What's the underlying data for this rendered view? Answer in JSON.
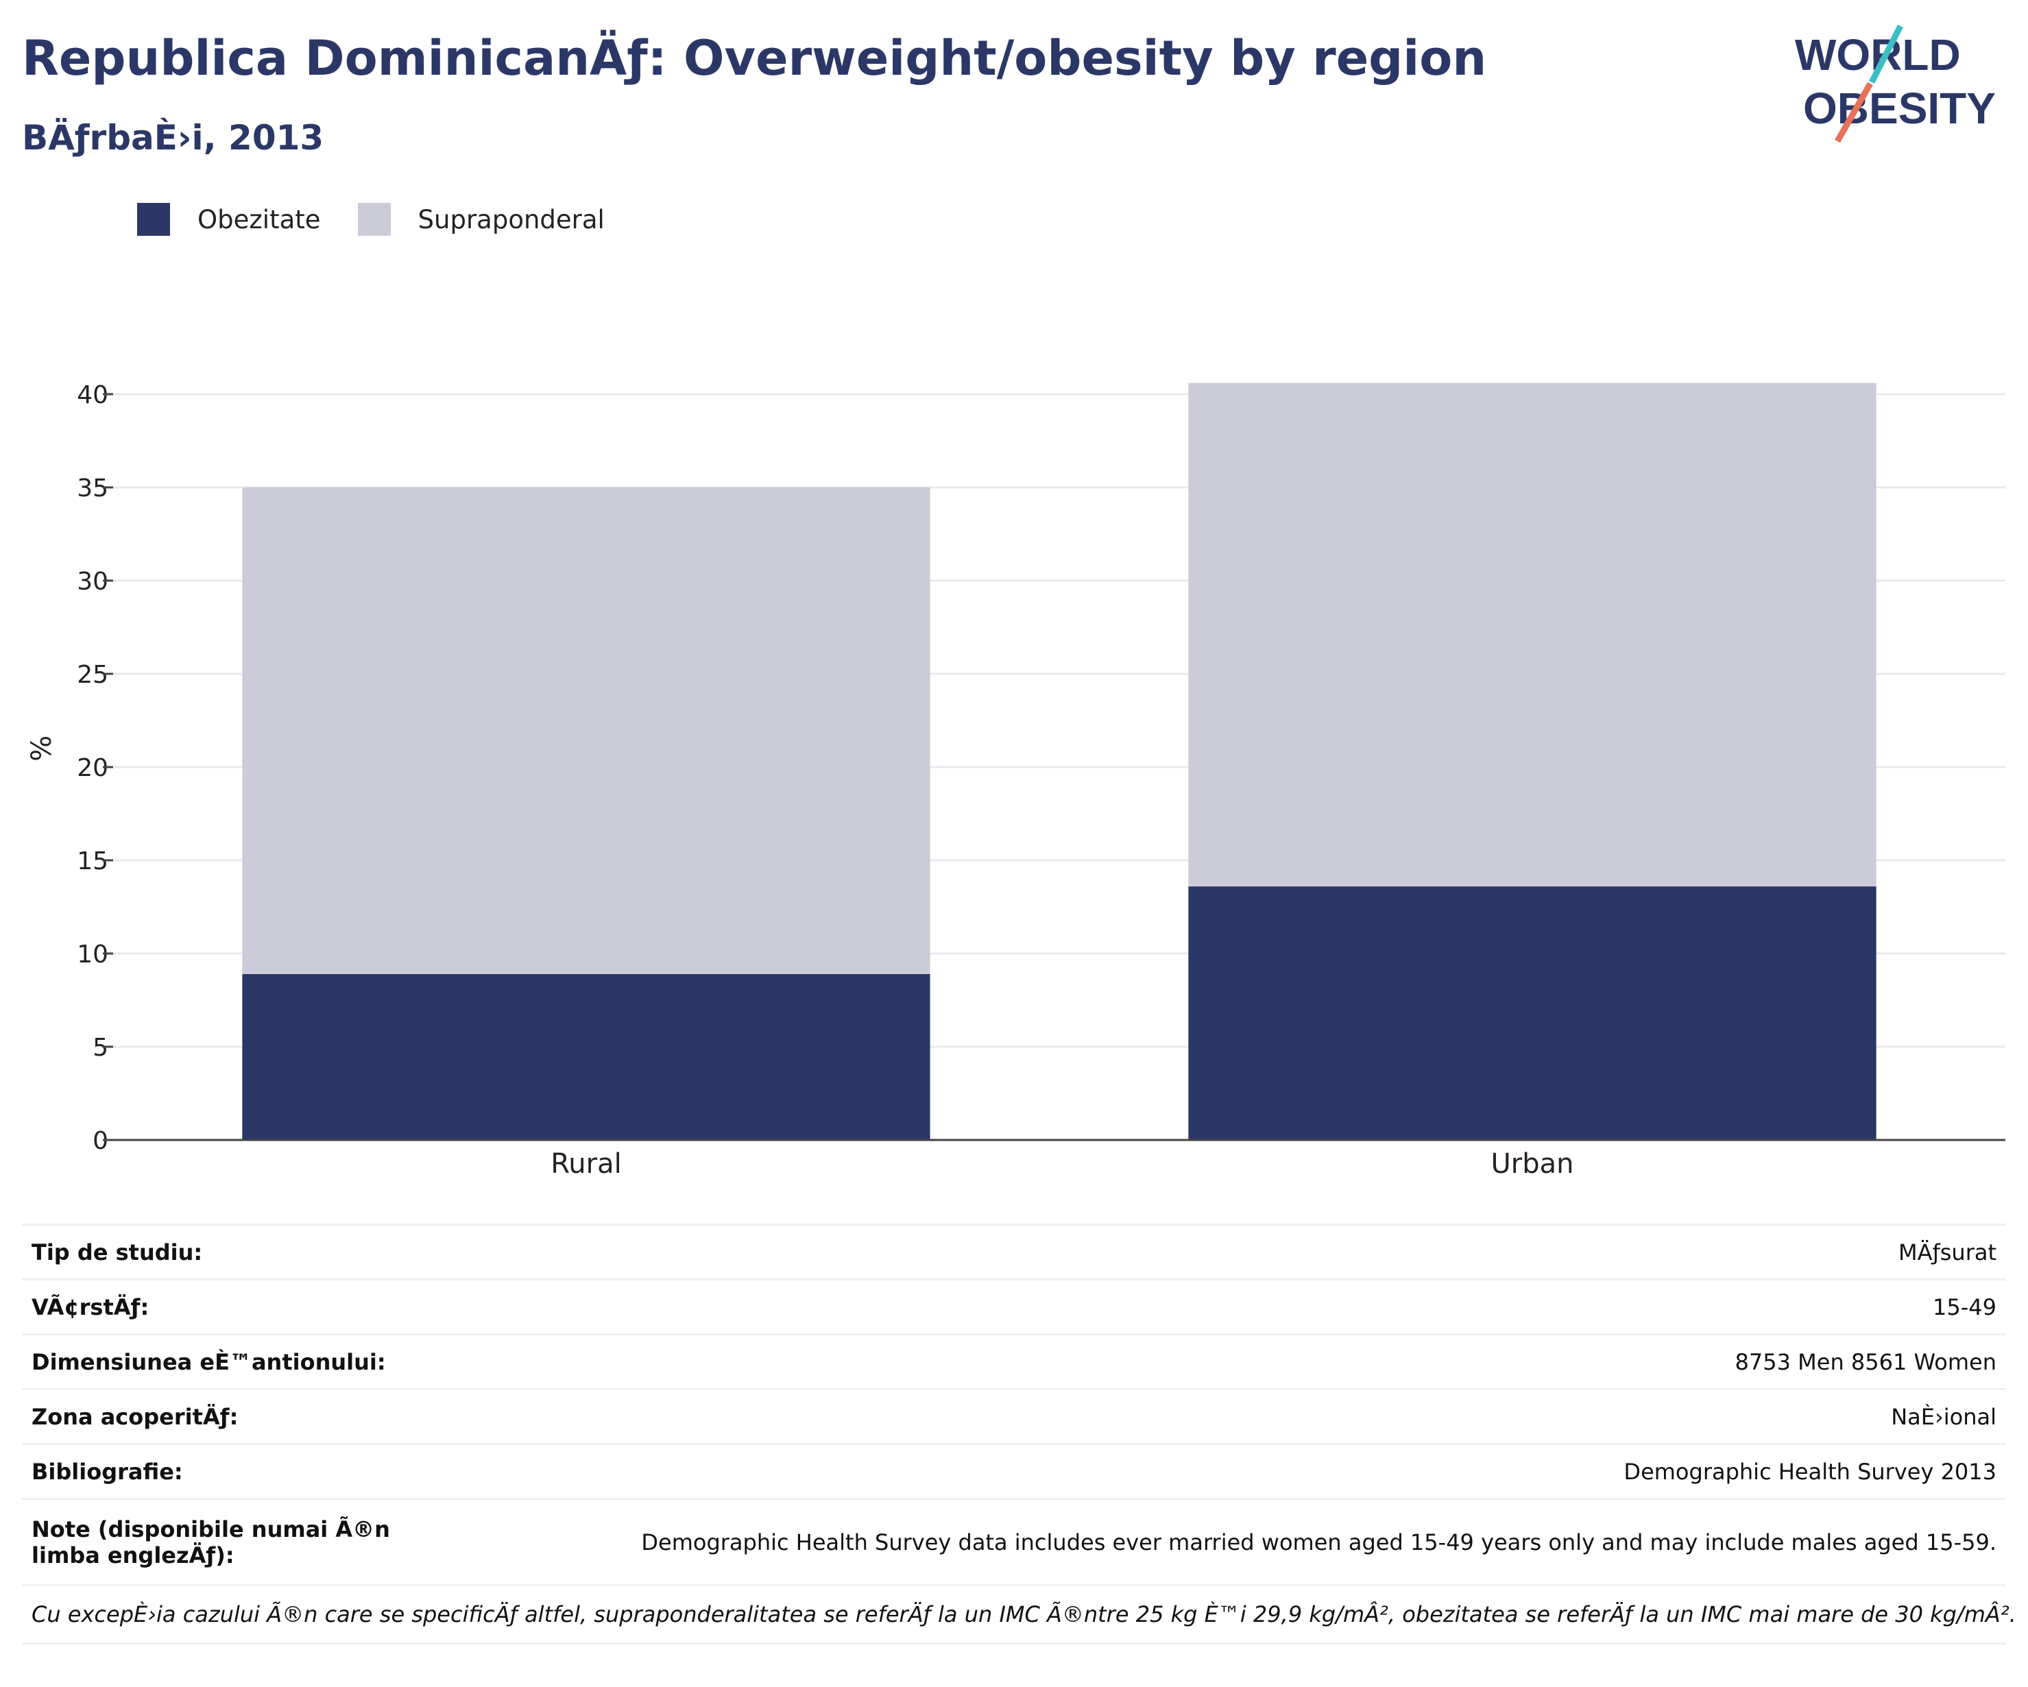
{
  "header": {
    "title": "Republica DominicanÄƒ: Overweight/obesity by region",
    "subtitle": "BÄƒrbaÈ›i, 2013"
  },
  "logo": {
    "line1": "WORLD",
    "line2": "OBESITY"
  },
  "legend": [
    {
      "label": "Obezitate",
      "color": "#2b3766"
    },
    {
      "label": "Supraponderal",
      "color": "#cbccd8"
    }
  ],
  "chart_data": {
    "type": "bar",
    "stacked": true,
    "categories": [
      "Rural",
      "Urban"
    ],
    "series": [
      {
        "name": "Obezitate",
        "values": [
          8.9,
          13.6
        ],
        "color": "#2b3766"
      },
      {
        "name": "Supraponderal",
        "values": [
          26.1,
          27.0
        ],
        "color": "#cbccd8"
      }
    ],
    "ylabel": "%",
    "ylim": [
      0,
      42
    ],
    "yticks": [
      0,
      5,
      10,
      15,
      20,
      25,
      30,
      35,
      40
    ],
    "grid": true,
    "legend_position": "top-left"
  },
  "info": [
    {
      "label": "Tip de studiu:",
      "value": "MÄƒsurat"
    },
    {
      "label": "VÃ¢rstÄƒ:",
      "value": "15-49"
    },
    {
      "label": "Dimensiunea eÈ™antionului:",
      "value": "8753 Men 8561 Women"
    },
    {
      "label": "Zona acoperitÄƒ:",
      "value": "NaÈ›ional"
    },
    {
      "label": "Bibliografie:",
      "value": "Demographic Health Survey 2013"
    },
    {
      "label": "Note (disponibile numai Ã®n limba englezÄƒ):",
      "value": "Demographic Health Survey data includes ever married women aged 15-49 years only and may include males aged 15-59."
    }
  ],
  "footnote": "Cu excepÈ›ia cazului Ã®n care se specificÄƒ altfel, supraponderalitatea se referÄƒ la un IMC Ã®ntre 25 kg È™i 29,9 kg/mÂ², obezitatea se referÄƒ la un IMC mai mare de 30 kg/mÂ²."
}
